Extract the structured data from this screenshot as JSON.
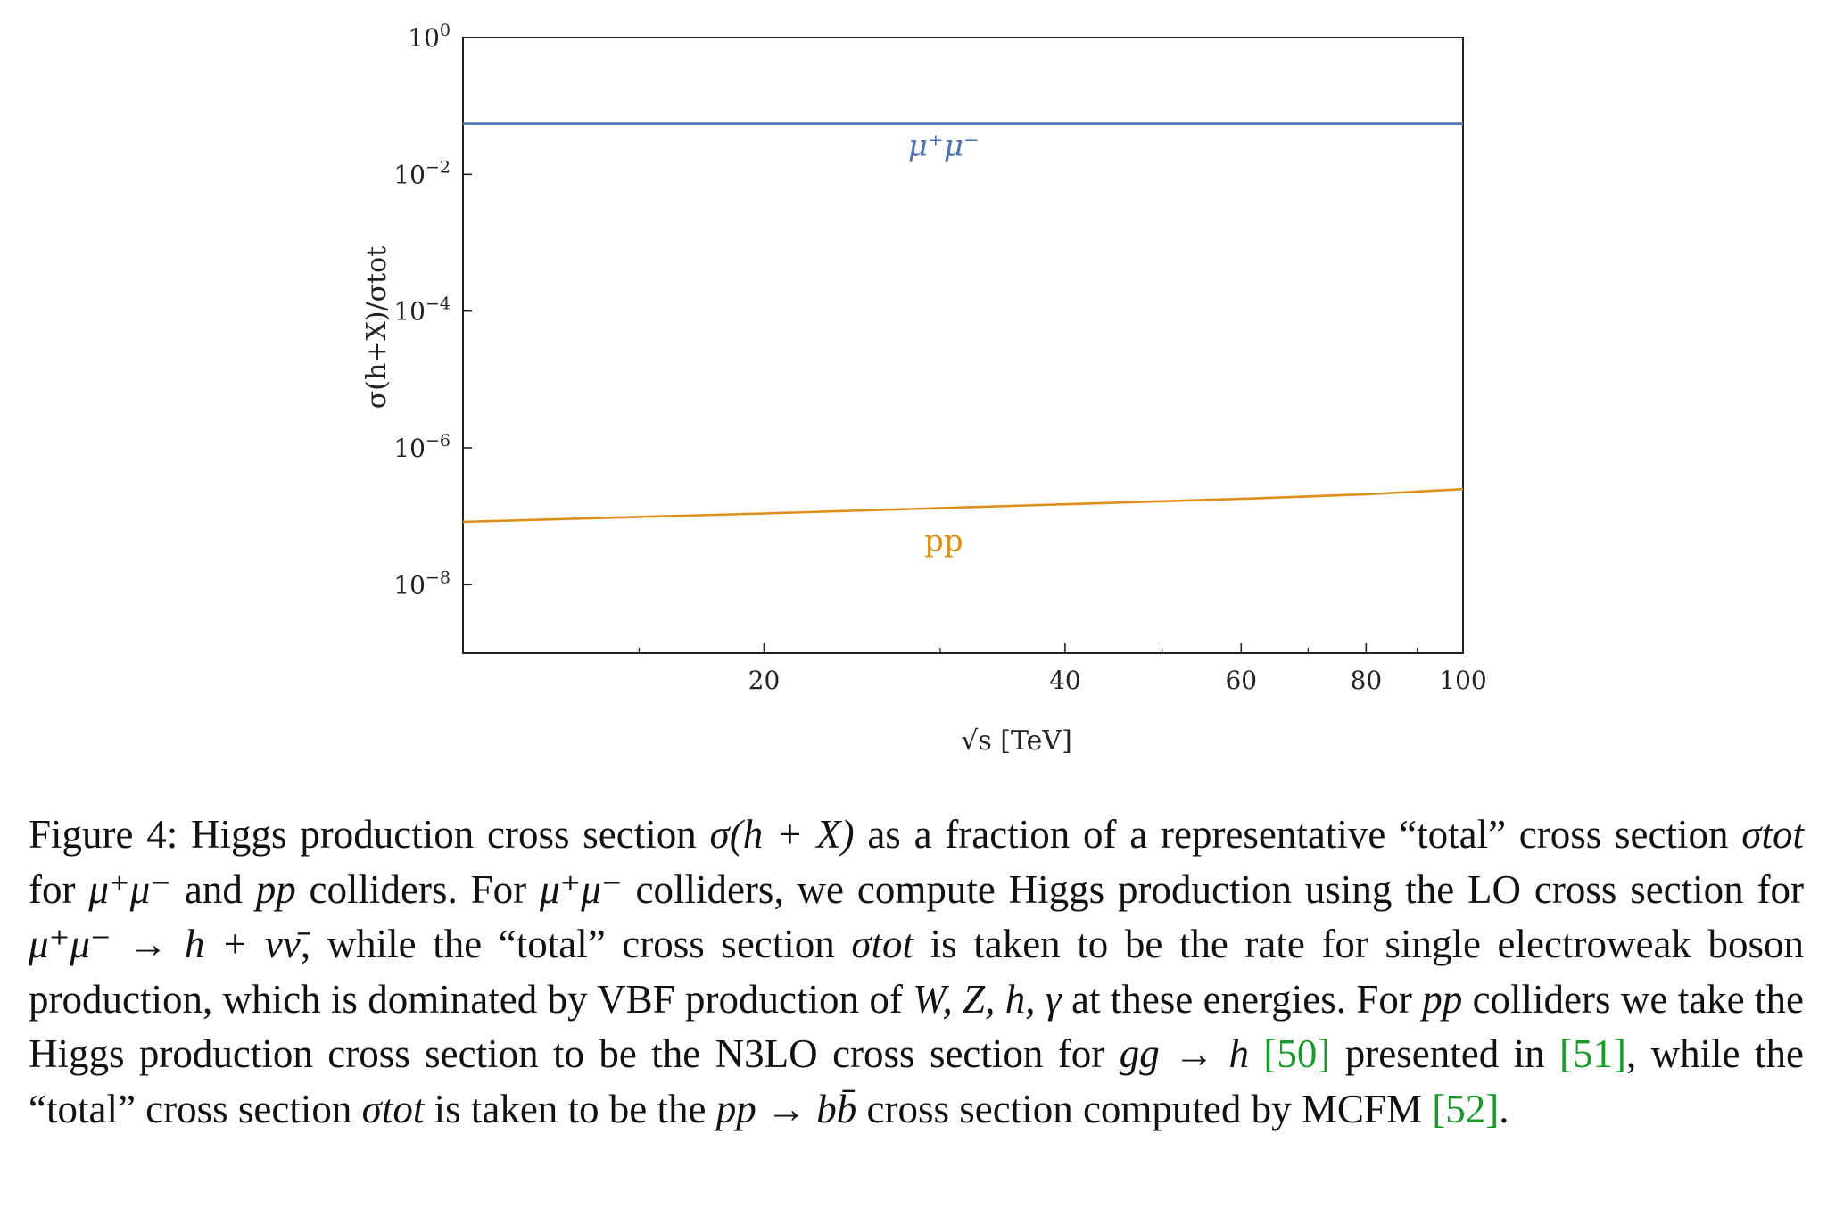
{
  "chart_data": {
    "type": "line",
    "xlabel": "√s [TeV]",
    "ylabel": "σ(h+X)/σtot",
    "x_scale": "log",
    "y_scale": "log",
    "xlim": [
      10,
      100
    ],
    "ylim": [
      1e-09,
      1
    ],
    "x_ticks": [
      {
        "value": 20,
        "label": "20"
      },
      {
        "value": 40,
        "label": "40"
      },
      {
        "value": 60,
        "label": "60"
      },
      {
        "value": 80,
        "label": "80"
      },
      {
        "value": 100,
        "label": "100"
      }
    ],
    "x_minor_ticks": [
      15,
      30,
      50,
      70,
      90
    ],
    "y_ticks": [
      {
        "value": 1,
        "base": "10",
        "exp": "0"
      },
      {
        "value": 0.01,
        "base": "10",
        "exp": "−2"
      },
      {
        "value": 0.0001,
        "base": "10",
        "exp": "−4"
      },
      {
        "value": 1e-06,
        "base": "10",
        "exp": "−6"
      },
      {
        "value": 1e-08,
        "base": "10",
        "exp": "−8"
      }
    ],
    "grid": false,
    "legend": "none",
    "series": [
      {
        "name": "μ⁺μ⁻",
        "color": "#4c72b0",
        "x": [
          10,
          20,
          40,
          60,
          80,
          100
        ],
        "y": [
          0.055,
          0.055,
          0.055,
          0.055,
          0.055,
          0.055
        ]
      },
      {
        "name": "pp",
        "color": "#dd8f1a",
        "x": [
          10,
          20,
          40,
          60,
          80,
          100
        ],
        "y": [
          8.3e-08,
          1.1e-07,
          1.5e-07,
          1.8e-07,
          2.1e-07,
          2.5e-07
        ]
      }
    ]
  },
  "caption": {
    "label": "Figure 4:",
    "segments": [
      {
        "text": " Higgs production cross section "
      },
      {
        "text": "σ(h + X)",
        "style": "math"
      },
      {
        "text": " as a fraction of a representative “total” cross section "
      },
      {
        "text": "σtot",
        "style": "math"
      },
      {
        "text": " for "
      },
      {
        "text": "μ⁺μ⁻",
        "style": "math"
      },
      {
        "text": " and "
      },
      {
        "text": "pp",
        "style": "math"
      },
      {
        "text": " colliders. For "
      },
      {
        "text": "μ⁺μ⁻",
        "style": "math"
      },
      {
        "text": " colliders, we compute Higgs production using the LO cross section for "
      },
      {
        "text": "μ⁺μ⁻ → h + νν̄",
        "style": "math"
      },
      {
        "text": ", while the “total” cross section "
      },
      {
        "text": "σtot",
        "style": "math"
      },
      {
        "text": " is taken to be the rate for single electroweak boson production, which is dominated by VBF production of "
      },
      {
        "text": "W, Z, h, γ",
        "style": "math"
      },
      {
        "text": " at these energies. For "
      },
      {
        "text": "pp",
        "style": "math"
      },
      {
        "text": " colliders we take the Higgs production cross section to be the N3LO cross section for "
      },
      {
        "text": "gg → h",
        "style": "math"
      },
      {
        "text": " "
      },
      {
        "text": "[50]",
        "style": "cite"
      },
      {
        "text": " presented in "
      },
      {
        "text": "[51]",
        "style": "cite"
      },
      {
        "text": ", while the “total” cross section "
      },
      {
        "text": "σtot",
        "style": "math"
      },
      {
        "text": " is taken to be the "
      },
      {
        "text": "pp → bb̄",
        "style": "math"
      },
      {
        "text": " cross section computed by MCFM "
      },
      {
        "text": "[52]",
        "style": "cite"
      },
      {
        "text": "."
      }
    ]
  }
}
